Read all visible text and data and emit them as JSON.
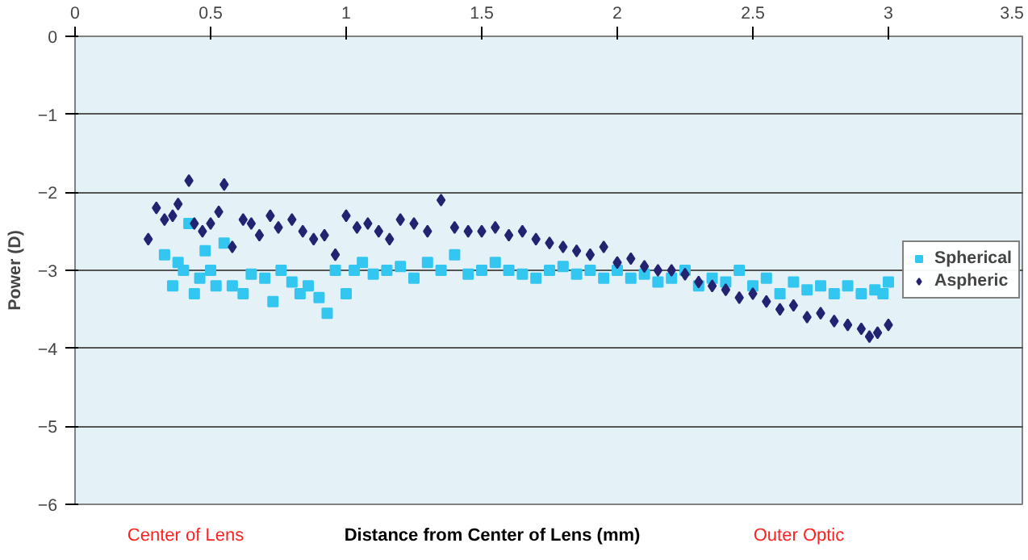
{
  "chart_data": {
    "type": "scatter",
    "xlabel": "Distance from Center of Lens (mm)",
    "ylabel": "Power (D)",
    "annotations": [
      "Center of Lens",
      "Outer Optic"
    ],
    "xlim": [
      0,
      3.5
    ],
    "xticks": [
      0,
      0.5,
      1,
      1.5,
      2,
      2.5,
      3,
      3.5
    ],
    "ylim": [
      -6,
      0
    ],
    "yticks": [
      -6,
      -5,
      -4,
      -3,
      -2,
      -1,
      0
    ],
    "grid": "y",
    "legend": "right",
    "tick_labels": "xy",
    "series": [
      {
        "name": "Spherical",
        "color": "#33c6f0",
        "marker": "square",
        "x": [
          0.33,
          0.36,
          0.38,
          0.4,
          0.42,
          0.44,
          0.46,
          0.48,
          0.5,
          0.52,
          0.55,
          0.58,
          0.62,
          0.65,
          0.7,
          0.73,
          0.76,
          0.8,
          0.83,
          0.86,
          0.9,
          0.93,
          0.96,
          1.0,
          1.03,
          1.06,
          1.1,
          1.15,
          1.2,
          1.25,
          1.3,
          1.35,
          1.4,
          1.45,
          1.5,
          1.55,
          1.6,
          1.65,
          1.7,
          1.75,
          1.8,
          1.85,
          1.9,
          1.95,
          2.0,
          2.05,
          2.1,
          2.15,
          2.2,
          2.25,
          2.3,
          2.35,
          2.4,
          2.45,
          2.5,
          2.55,
          2.6,
          2.65,
          2.7,
          2.75,
          2.8,
          2.85,
          2.9,
          2.95,
          2.98,
          3.0
        ],
        "values": [
          -2.8,
          -3.2,
          -2.9,
          -3.0,
          -2.4,
          -3.3,
          -3.1,
          -2.75,
          -3.0,
          -3.2,
          -2.65,
          -3.2,
          -3.3,
          -3.05,
          -3.1,
          -3.4,
          -3.0,
          -3.15,
          -3.3,
          -3.2,
          -3.35,
          -3.55,
          -3.0,
          -3.3,
          -3.0,
          -2.9,
          -3.05,
          -3.0,
          -2.95,
          -3.1,
          -2.9,
          -3.0,
          -2.8,
          -3.05,
          -3.0,
          -2.9,
          -3.0,
          -3.05,
          -3.1,
          -3.0,
          -2.95,
          -3.05,
          -3.0,
          -3.1,
          -3.0,
          -3.1,
          -3.05,
          -3.15,
          -3.1,
          -3.0,
          -3.2,
          -3.1,
          -3.15,
          -3.0,
          -3.2,
          -3.1,
          -3.3,
          -3.15,
          -3.25,
          -3.2,
          -3.3,
          -3.2,
          -3.3,
          -3.25,
          -3.3,
          -3.15
        ]
      },
      {
        "name": "Aspheric",
        "color": "#232372",
        "marker": "diamond",
        "x": [
          0.27,
          0.3,
          0.33,
          0.36,
          0.38,
          0.42,
          0.44,
          0.47,
          0.5,
          0.53,
          0.55,
          0.58,
          0.62,
          0.65,
          0.68,
          0.72,
          0.75,
          0.8,
          0.84,
          0.88,
          0.92,
          0.96,
          1.0,
          1.04,
          1.08,
          1.12,
          1.16,
          1.2,
          1.25,
          1.3,
          1.35,
          1.4,
          1.45,
          1.5,
          1.55,
          1.6,
          1.65,
          1.7,
          1.75,
          1.8,
          1.85,
          1.9,
          1.95,
          2.0,
          2.05,
          2.1,
          2.15,
          2.2,
          2.25,
          2.3,
          2.35,
          2.4,
          2.45,
          2.5,
          2.55,
          2.6,
          2.65,
          2.7,
          2.75,
          2.8,
          2.85,
          2.9,
          2.93,
          2.96,
          3.0
        ],
        "values": [
          -2.6,
          -2.2,
          -2.35,
          -2.3,
          -2.15,
          -1.85,
          -2.4,
          -2.5,
          -2.4,
          -2.25,
          -1.9,
          -2.7,
          -2.35,
          -2.4,
          -2.55,
          -2.3,
          -2.45,
          -2.35,
          -2.5,
          -2.6,
          -2.55,
          -2.8,
          -2.3,
          -2.45,
          -2.4,
          -2.5,
          -2.6,
          -2.35,
          -2.4,
          -2.5,
          -2.1,
          -2.45,
          -2.5,
          -2.5,
          -2.45,
          -2.55,
          -2.5,
          -2.6,
          -2.65,
          -2.7,
          -2.75,
          -2.8,
          -2.7,
          -2.9,
          -2.85,
          -2.95,
          -3.0,
          -3.0,
          -3.05,
          -3.15,
          -3.2,
          -3.25,
          -3.35,
          -3.3,
          -3.4,
          -3.5,
          -3.45,
          -3.6,
          -3.55,
          -3.65,
          -3.7,
          -3.75,
          -3.85,
          -3.8,
          -3.7
        ]
      }
    ]
  }
}
